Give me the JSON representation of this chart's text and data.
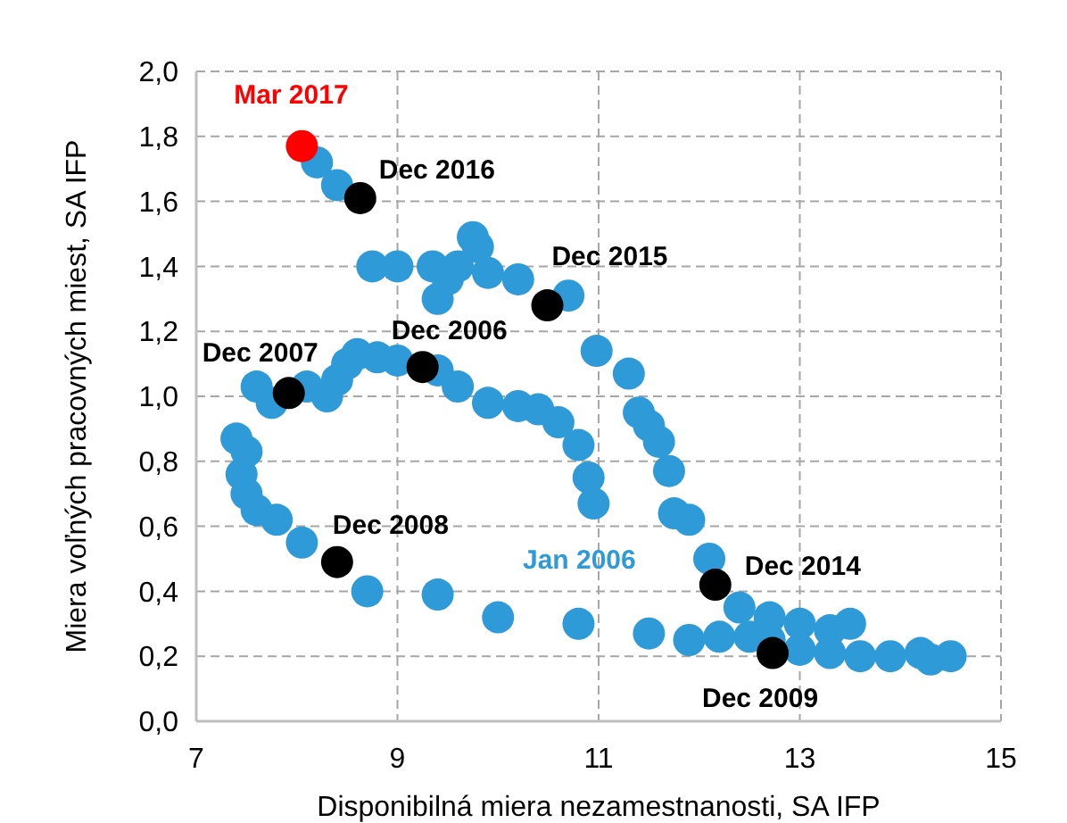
{
  "chart_data": {
    "type": "scatter",
    "xlabel": "Disponibilná miera nezamestnanosti, SA IFP",
    "ylabel": "Miera voľných pracovných miest, SA IFP",
    "xlim": [
      7,
      15
    ],
    "xticks": [
      7,
      9,
      11,
      13,
      15
    ],
    "ylim": [
      0,
      2
    ],
    "yticks": [
      {
        "value": 0,
        "label": "0,0"
      },
      {
        "value": 0.2,
        "label": "0,2"
      },
      {
        "value": 0.4,
        "label": "0,4"
      },
      {
        "value": 0.6,
        "label": "0,6"
      },
      {
        "value": 0.8,
        "label": "0,8"
      },
      {
        "value": 1.0,
        "label": "1,0"
      },
      {
        "value": 1.2,
        "label": "1,2"
      },
      {
        "value": 1.4,
        "label": "1,4"
      },
      {
        "value": 1.6,
        "label": "1,6"
      },
      {
        "value": 1.8,
        "label": "1,8"
      },
      {
        "value": 2.0,
        "label": "2,0"
      }
    ],
    "grid": true,
    "marker": "circle",
    "series": [
      {
        "color": "#2e9ad8",
        "x": [
          10.95,
          10.9,
          10.8,
          10.6,
          10.4,
          10.2,
          9.9,
          9.6,
          9.4,
          9.0,
          8.8,
          8.6,
          8.5,
          8.4,
          8.3,
          8.1,
          7.75,
          7.6,
          7.4,
          7.5,
          7.45,
          7.5,
          7.6,
          7.8,
          8.05,
          8.7,
          9.4,
          10.0,
          10.8,
          11.5,
          11.9,
          12.2,
          12.5,
          12.7,
          13.0,
          13.3,
          13.6,
          13.9,
          14.2,
          14.5,
          14.3,
          13.5,
          13.3,
          13.0,
          12.7,
          12.4,
          12.1,
          11.9,
          11.75,
          11.7,
          11.6,
          11.5,
          11.4,
          11.3,
          10.98,
          10.7,
          10.2,
          9.9,
          9.8,
          9.75,
          9.6,
          9.5,
          9.4,
          9.35,
          9.0,
          8.75,
          8.4,
          8.2
        ],
        "values": [
          0.67,
          0.75,
          0.85,
          0.92,
          0.96,
          0.97,
          0.98,
          1.03,
          1.08,
          1.11,
          1.12,
          1.13,
          1.1,
          1.05,
          1.0,
          1.03,
          0.98,
          1.03,
          0.87,
          0.83,
          0.76,
          0.7,
          0.65,
          0.62,
          0.55,
          0.4,
          0.39,
          0.32,
          0.3,
          0.27,
          0.25,
          0.26,
          0.26,
          0.25,
          0.22,
          0.21,
          0.2,
          0.2,
          0.21,
          0.2,
          0.19,
          0.3,
          0.28,
          0.3,
          0.32,
          0.35,
          0.5,
          0.62,
          0.64,
          0.77,
          0.86,
          0.91,
          0.95,
          1.07,
          1.14,
          1.31,
          1.36,
          1.38,
          1.46,
          1.49,
          1.4,
          1.36,
          1.3,
          1.4,
          1.4,
          1.4,
          1.65,
          1.72
        ]
      },
      {
        "color": "#000000",
        "x": [
          9.25,
          7.92,
          8.4,
          12.73,
          12.16,
          10.49,
          8.63
        ],
        "values": [
          1.09,
          1.01,
          0.49,
          0.21,
          0.42,
          1.28,
          1.61
        ]
      },
      {
        "color": "#ff0000",
        "x": [
          8.05
        ],
        "values": [
          1.77
        ]
      }
    ],
    "annotations": [
      {
        "text": "Mar 2017",
        "x": 8.05,
        "y": 1.77
      },
      {
        "text": "Dec 2016",
        "x": 8.63,
        "y": 1.61
      },
      {
        "text": "Dec 2015",
        "x": 10.49,
        "y": 1.28
      },
      {
        "text": "Dec 2006",
        "x": 9.25,
        "y": 1.09
      },
      {
        "text": "Dec 2007",
        "x": 7.92,
        "y": 1.01
      },
      {
        "text": "Dec 2008",
        "x": 8.4,
        "y": 0.49
      },
      {
        "text": "Jan 2006",
        "x": 10.95,
        "y": 0.67
      },
      {
        "text": "Dec 2014",
        "x": 12.16,
        "y": 0.42
      },
      {
        "text": "Dec 2009",
        "x": 12.73,
        "y": 0.21
      }
    ]
  }
}
